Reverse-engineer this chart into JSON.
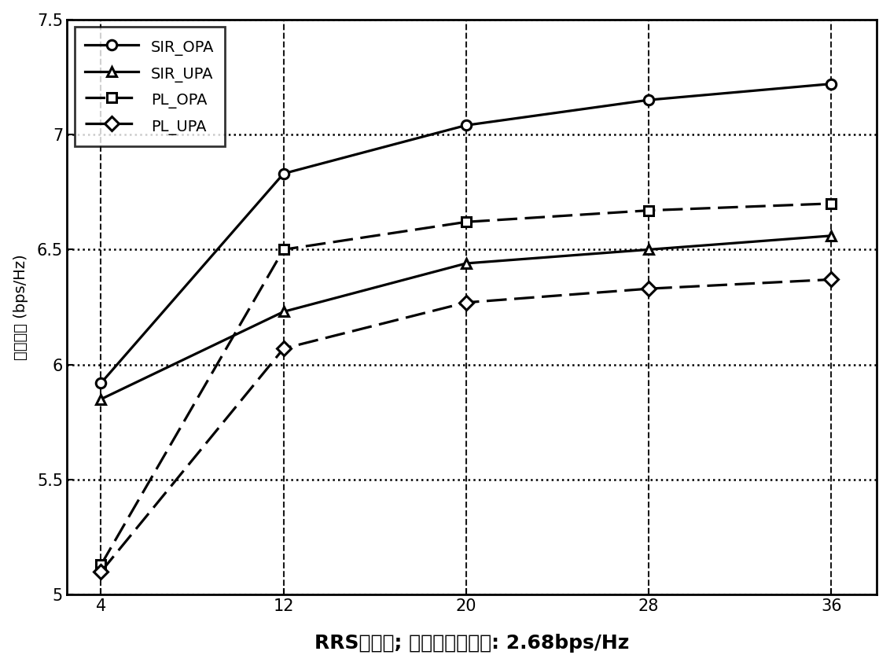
{
  "x": [
    4,
    12,
    20,
    28,
    36
  ],
  "SIR_OPA": [
    5.92,
    6.83,
    7.04,
    7.15,
    7.22
  ],
  "SIR_UPA": [
    5.85,
    6.23,
    6.44,
    6.5,
    6.56
  ],
  "PL_OPA": [
    5.13,
    6.5,
    6.62,
    6.67,
    6.7
  ],
  "PL_UPA": [
    5.1,
    6.07,
    6.27,
    6.33,
    6.37
  ],
  "ylim": [
    5.0,
    7.5
  ],
  "xlim_lo": 2.5,
  "xlim_hi": 38.0,
  "yticks": [
    5.0,
    5.5,
    6.0,
    6.5,
    7.0,
    7.5
  ],
  "xticks": [
    4,
    12,
    20,
    28,
    36
  ],
  "ylabel_cn": "平均容量（bps/Hz）",
  "xlabel_cn": "RRS的数量； 直接传输的容量： 2.68bps/Hz",
  "legend_labels": [
    "SIR_OPA",
    "SIR_UPA",
    "PL_OPA",
    "PL_UPA"
  ],
  "background": "#ffffff",
  "line_color": "#000000"
}
